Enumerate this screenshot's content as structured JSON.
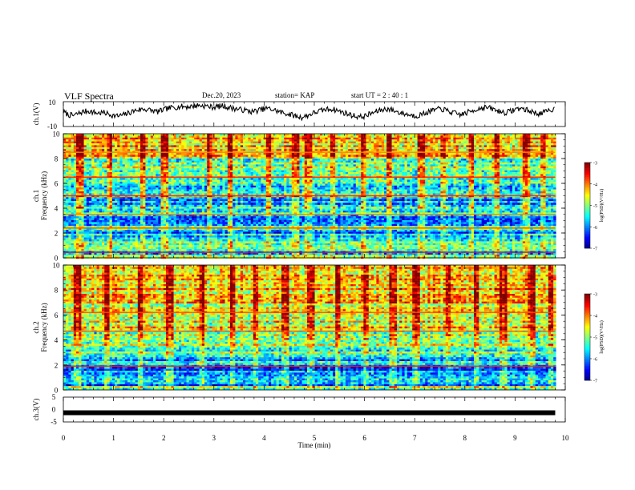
{
  "header": {
    "title": "VLF Spectra",
    "date": "Dec.20, 2023",
    "station": "station= KAP",
    "start": "start  UT =   2 : 40 : 1"
  },
  "chart_data": [
    {
      "type": "line",
      "name": "ch1-waveform",
      "ylabel": "ch.1(V)",
      "yticks": [
        "10",
        "-10"
      ],
      "ylim": [
        -10,
        10
      ],
      "xlim": [
        0,
        10
      ],
      "y": [
        1.8,
        -0.6,
        -1.2,
        0.4,
        1.9,
        2.6,
        1.5,
        0.8,
        1.2,
        0.2,
        -1.0,
        -1.6,
        -0.8,
        0.6,
        2.3,
        3.4,
        4.1,
        3.6,
        2.7,
        1.8,
        3.2,
        4.5,
        5.3,
        5.8,
        6.2,
        5.9,
        6.4,
        7.1,
        6.8,
        6.3,
        5.6,
        6.0,
        6.6,
        5.7,
        4.8,
        4.1,
        3.5,
        2.6,
        1.9,
        2.8,
        3.9,
        4.6,
        3.8,
        2.5,
        1.2,
        0.4,
        -0.7,
        -1.9,
        -2.6,
        -1.5,
        0.3,
        1.8,
        2.9,
        3.8,
        4.2,
        3.1,
        1.7,
        0.5,
        -0.8,
        -1.8,
        -2.3,
        -1.1,
        0.6,
        2.0,
        3.3,
        4.3,
        3.5,
        2.1,
        0.8,
        0.0,
        -0.9,
        -1.4,
        -0.4,
        1.0,
        2.5,
        3.6,
        4.2,
        3.0,
        1.6,
        0.4,
        -0.5,
        0.8,
        2.2,
        3.7,
        4.8,
        5.5,
        4.6,
        3.2,
        2.0,
        1.1,
        2.4,
        3.9,
        4.7,
        3.6,
        2.2,
        1.0,
        0.3,
        1.6,
        3.1,
        4.4
      ]
    },
    {
      "type": "heatmap",
      "name": "ch1-spectrogram",
      "ylabel": "ch.1\nFrequency (kHz)",
      "yticks": [
        "0",
        "2",
        "4",
        "6",
        "8",
        "10"
      ],
      "ylim": [
        0,
        10
      ],
      "xlim": [
        0,
        10
      ],
      "colorbar": {
        "min": -7,
        "max": -3,
        "ticks": [
          "-3",
          "-4",
          "-5",
          "-6",
          "-7"
        ],
        "label": "log(PSD)(V²/Hz)"
      },
      "bands": [
        {
          "from": 0.0,
          "to": 0.3,
          "level": 0.6
        },
        {
          "from": 0.3,
          "to": 0.6,
          "level": 0.35
        },
        {
          "from": 0.6,
          "to": 1.6,
          "level": 0.45
        },
        {
          "from": 1.6,
          "to": 2.3,
          "level": 0.3
        },
        {
          "from": 2.3,
          "to": 2.6,
          "level": 0.5
        },
        {
          "from": 2.6,
          "to": 3.4,
          "level": 0.3
        },
        {
          "from": 3.4,
          "to": 4.3,
          "level": 0.4
        },
        {
          "from": 4.3,
          "to": 4.9,
          "level": 0.28
        },
        {
          "from": 4.9,
          "to": 5.1,
          "level": 0.62
        },
        {
          "from": 5.1,
          "to": 6.4,
          "level": 0.38
        },
        {
          "from": 6.4,
          "to": 6.6,
          "level": 0.65
        },
        {
          "from": 6.6,
          "to": 8.0,
          "level": 0.5
        },
        {
          "from": 8.0,
          "to": 10.0,
          "level": 0.66
        }
      ],
      "lines": [
        {
          "f": 0.45,
          "level": 0.9
        },
        {
          "f": 2.4,
          "level": 0.8
        },
        {
          "f": 3.5,
          "level": 0.75
        },
        {
          "f": 5.0,
          "level": 0.85
        },
        {
          "f": 6.5,
          "level": 0.85
        },
        {
          "f": 8.5,
          "level": 0.75
        }
      ],
      "bursts": [
        0.3,
        0.9,
        1.55,
        2.0,
        2.9,
        3.3,
        4.05,
        4.6,
        4.85,
        5.35,
        5.95,
        6.45,
        7.1,
        7.55,
        8.1,
        8.6,
        9.2,
        9.55
      ]
    },
    {
      "type": "heatmap",
      "name": "ch2-spectrogram",
      "ylabel": "ch.2\nFrequency (kHz)",
      "yticks": [
        "0",
        "2",
        "4",
        "6",
        "8",
        "10"
      ],
      "ylim": [
        0,
        10
      ],
      "xlim": [
        0,
        10
      ],
      "colorbar": {
        "min": -7,
        "max": -3,
        "ticks": [
          "-3",
          "-4",
          "-5",
          "-6",
          "-7"
        ],
        "label": "log(PSD)(V²/Hz)"
      },
      "bands": [
        {
          "from": 0.0,
          "to": 0.3,
          "level": 0.5
        },
        {
          "from": 0.3,
          "to": 1.5,
          "level": 0.28
        },
        {
          "from": 1.5,
          "to": 1.9,
          "level": 0.2
        },
        {
          "from": 1.9,
          "to": 2.6,
          "level": 0.32
        },
        {
          "from": 2.6,
          "to": 3.5,
          "level": 0.45
        },
        {
          "from": 3.5,
          "to": 5.0,
          "level": 0.55
        },
        {
          "from": 5.0,
          "to": 7.0,
          "level": 0.62
        },
        {
          "from": 7.0,
          "to": 10.0,
          "level": 0.7
        }
      ],
      "lines": [
        {
          "f": 1.9,
          "level": 0.85
        },
        {
          "f": 4.7,
          "level": 0.8
        },
        {
          "f": 6.2,
          "level": 0.8
        }
      ],
      "bursts": [
        0.25,
        0.85,
        1.5,
        2.1,
        2.75,
        3.35,
        3.8,
        4.4,
        4.9,
        5.45,
        6.0,
        6.55,
        7.0,
        7.65,
        8.2,
        8.75,
        9.3,
        9.7
      ]
    },
    {
      "type": "line",
      "name": "ch3-waveform",
      "ylabel": "ch.3(V)",
      "yticks": [
        "5",
        "0",
        "-5"
      ],
      "ylim": [
        -5,
        5
      ],
      "xlim": [
        0,
        10
      ],
      "xlabel": "Time  (min)",
      "xticks": [
        "0",
        "1",
        "2",
        "3",
        "4",
        "5",
        "6",
        "7",
        "8",
        "9",
        "10"
      ],
      "y": [
        -1.3,
        -1.3
      ],
      "x": [
        0,
        9.8
      ]
    }
  ]
}
